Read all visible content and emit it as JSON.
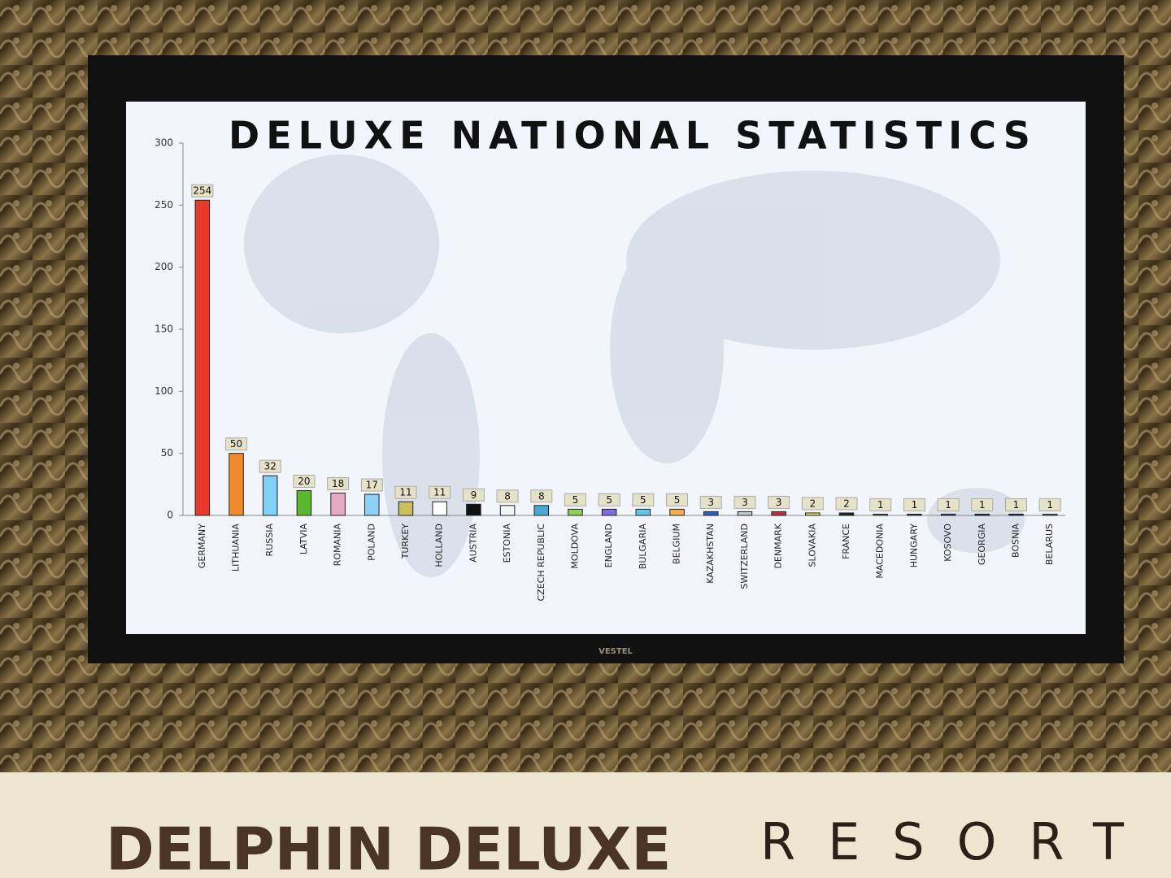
{
  "chart_data": {
    "type": "bar",
    "title": "DELUXE NATIONAL STATISTICS",
    "categories": [
      "GERMANY",
      "LITHUANIA",
      "RUSSIA",
      "LATVIA",
      "ROMANIA",
      "POLAND",
      "TURKEY",
      "HOLLAND",
      "AUSTRIA",
      "ESTONIA",
      "CZECH REPUBLIC",
      "MOLDOVA",
      "ENGLAND",
      "BULGARIA",
      "BELGIUM",
      "KAZAKHSTAN",
      "SWITZERLAND",
      "DENMARK",
      "SLOVAKIA",
      "FRANCE",
      "MACEDONIA",
      "HUNGARY",
      "KOSOVO",
      "GEORGIA",
      "BOSNIA",
      "BELARUS"
    ],
    "values": [
      254,
      50,
      32,
      20,
      18,
      17,
      11,
      11,
      9,
      8,
      8,
      5,
      5,
      5,
      5,
      3,
      3,
      3,
      2,
      2,
      1,
      1,
      1,
      1,
      1,
      1
    ],
    "colors": [
      "#e8392a",
      "#f08a2a",
      "#7fd0f5",
      "#5cb82f",
      "#e8a8c8",
      "#8fd0f8",
      "#c8c060",
      "#ffffff",
      "#111111",
      "#f4f4f4",
      "#4aa8d8",
      "#8fcf5a",
      "#7b6fd8",
      "#5fc8e8",
      "#f0b050",
      "#3060c0",
      "#c0c8d0",
      "#c03040",
      "#e8d860",
      "#202020",
      "#888888",
      "#404060",
      "#3050a0",
      "#202040",
      "#303050",
      "#a0a0a0"
    ],
    "ylim": [
      0,
      300
    ],
    "yticks": [
      0,
      50,
      100,
      150,
      200,
      250,
      300
    ]
  },
  "brand": "VESTEL",
  "sign": {
    "name": "DELPHIN DELUXE",
    "suffix": "RESORT"
  }
}
